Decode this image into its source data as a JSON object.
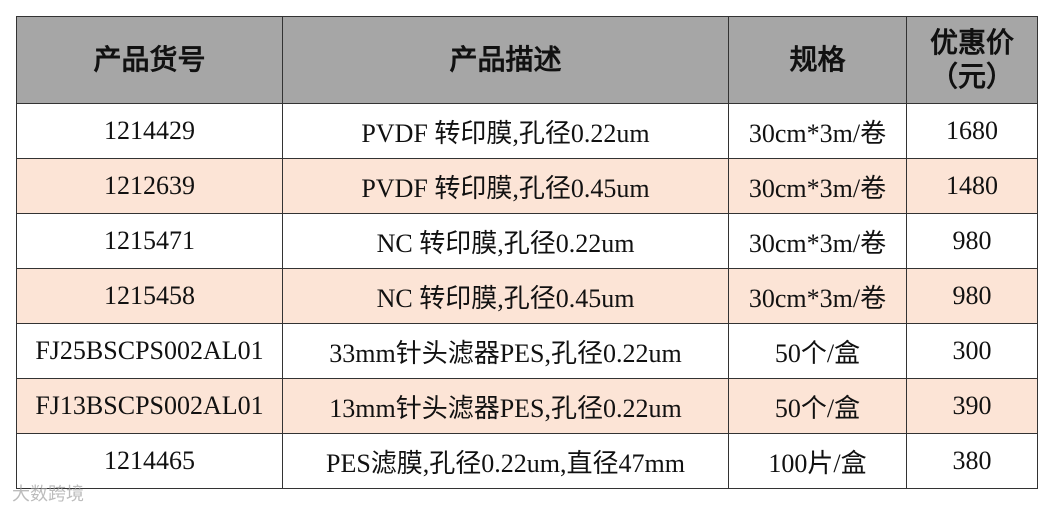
{
  "table": {
    "headers": [
      "产品货号",
      "产品描述",
      "规格",
      "优惠价\n（元）"
    ],
    "rows": [
      [
        "1214429",
        "PVDF 转印膜,孔径0.22um",
        "30cm*3m/卷",
        1680
      ],
      [
        "1212639",
        "PVDF 转印膜,孔径0.45um",
        "30cm*3m/卷",
        1480
      ],
      [
        "1215471",
        "NC 转印膜,孔径0.22um",
        "30cm*3m/卷",
        980
      ],
      [
        "1215458",
        "NC 转印膜,孔径0.45um",
        "30cm*3m/卷",
        980
      ],
      [
        "FJ25BSCPS002AL01",
        "33mm针头滤器PES,孔径0.22um",
        "50个/盒",
        300
      ],
      [
        "FJ13BSCPS002AL01",
        "13mm针头滤器PES,孔径0.22um",
        "50个/盒",
        390
      ],
      [
        "1214465",
        "PES滤膜,孔径0.22um,直径47mm",
        "100片/盒",
        380
      ]
    ]
  },
  "watermark": "大数跨境"
}
